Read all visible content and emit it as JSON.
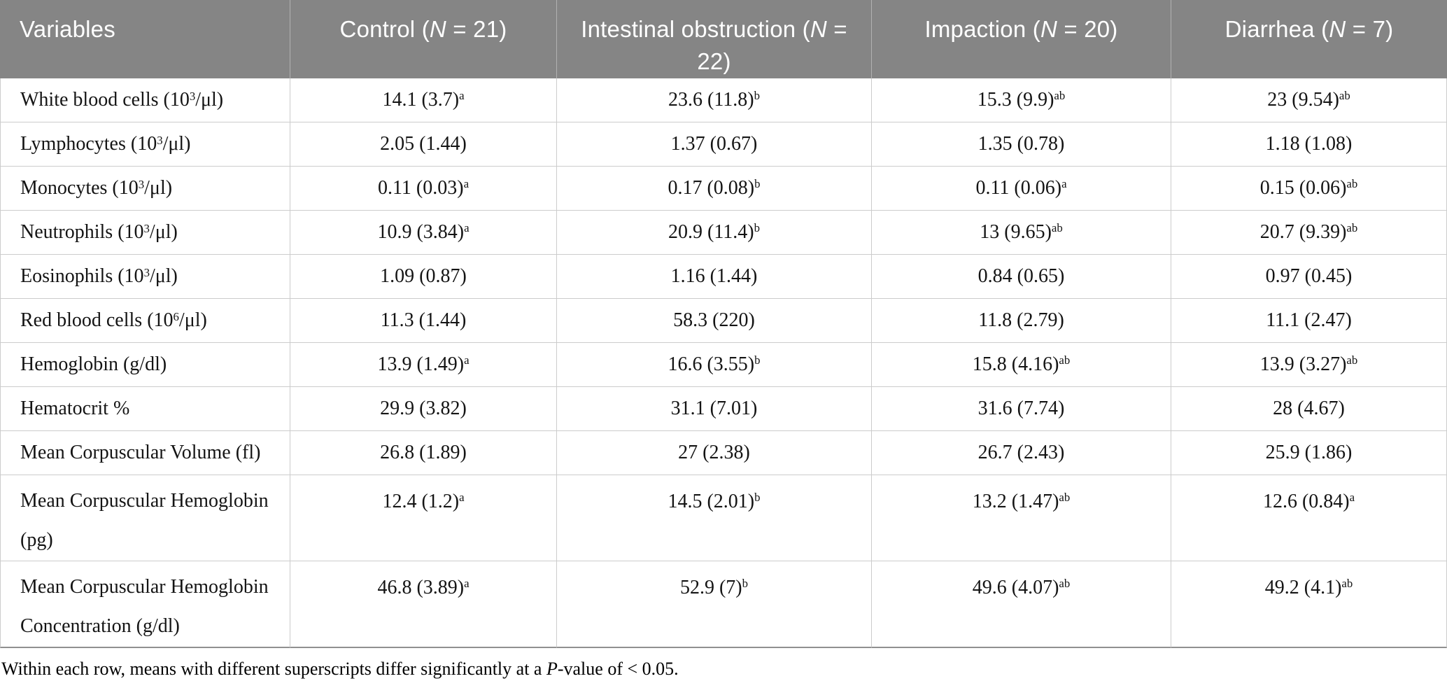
{
  "table": {
    "columns": [
      {
        "label": "Variables"
      },
      {
        "label": "Control (N = 21)"
      },
      {
        "label": "Intestinal obstruction (N = 22)"
      },
      {
        "label": "Impaction (N = 20)"
      },
      {
        "label": "Diarrhea (N = 7)"
      }
    ],
    "rows": [
      {
        "label": "White blood cells (10³/μl)",
        "cells": [
          {
            "v": "14.1 (3.7)",
            "s": "a"
          },
          {
            "v": "23.6 (11.8)",
            "s": "b"
          },
          {
            "v": "15.3 (9.9)",
            "s": "ab"
          },
          {
            "v": "23 (9.54)",
            "s": "ab"
          }
        ]
      },
      {
        "label": "Lymphocytes (10³/μl)",
        "cells": [
          {
            "v": "2.05 (1.44)",
            "s": ""
          },
          {
            "v": "1.37 (0.67)",
            "s": ""
          },
          {
            "v": "1.35 (0.78)",
            "s": ""
          },
          {
            "v": "1.18 (1.08)",
            "s": ""
          }
        ]
      },
      {
        "label": "Monocytes (10³/μl)",
        "cells": [
          {
            "v": "0.11 (0.03)",
            "s": "a"
          },
          {
            "v": "0.17 (0.08)",
            "s": "b"
          },
          {
            "v": "0.11 (0.06)",
            "s": "a"
          },
          {
            "v": "0.15 (0.06)",
            "s": "ab"
          }
        ]
      },
      {
        "label": "Neutrophils (10³/μl)",
        "cells": [
          {
            "v": "10.9 (3.84)",
            "s": "a"
          },
          {
            "v": "20.9 (11.4)",
            "s": "b"
          },
          {
            "v": "13 (9.65)",
            "s": "ab"
          },
          {
            "v": "20.7 (9.39)",
            "s": "ab"
          }
        ]
      },
      {
        "label": "Eosinophils (10³/μl)",
        "cells": [
          {
            "v": "1.09 (0.87)",
            "s": ""
          },
          {
            "v": "1.16 (1.44)",
            "s": ""
          },
          {
            "v": "0.84 (0.65)",
            "s": ""
          },
          {
            "v": "0.97 (0.45)",
            "s": ""
          }
        ]
      },
      {
        "label": "Red blood cells (10⁶/μl)",
        "cells": [
          {
            "v": "11.3 (1.44)",
            "s": ""
          },
          {
            "v": "58.3 (220)",
            "s": ""
          },
          {
            "v": "11.8 (2.79)",
            "s": ""
          },
          {
            "v": "11.1 (2.47)",
            "s": ""
          }
        ]
      },
      {
        "label": "Hemoglobin (g/dl)",
        "cells": [
          {
            "v": "13.9 (1.49)",
            "s": "a"
          },
          {
            "v": "16.6 (3.55)",
            "s": "b"
          },
          {
            "v": "15.8 (4.16)",
            "s": "ab"
          },
          {
            "v": "13.9 (3.27)",
            "s": "ab"
          }
        ]
      },
      {
        "label": "Hematocrit %",
        "cells": [
          {
            "v": "29.9 (3.82)",
            "s": ""
          },
          {
            "v": "31.1 (7.01)",
            "s": ""
          },
          {
            "v": "31.6 (7.74)",
            "s": ""
          },
          {
            "v": "28 (4.67)",
            "s": ""
          }
        ]
      },
      {
        "label": "Mean Corpuscular Volume (fl)",
        "cells": [
          {
            "v": "26.8 (1.89)",
            "s": ""
          },
          {
            "v": "27 (2.38)",
            "s": ""
          },
          {
            "v": "26.7 (2.43)",
            "s": ""
          },
          {
            "v": "25.9 (1.86)",
            "s": ""
          }
        ]
      },
      {
        "label": "Mean Corpuscular Hemoglobin (pg)",
        "tall": true,
        "cells": [
          {
            "v": "12.4 (1.2)",
            "s": "a"
          },
          {
            "v": "14.5 (2.01)",
            "s": "b"
          },
          {
            "v": "13.2 (1.47)",
            "s": "ab"
          },
          {
            "v": "12.6 (0.84)",
            "s": "a"
          }
        ]
      },
      {
        "label": "Mean Corpuscular Hemoglobin Concentration (g/dl)",
        "tall": true,
        "cells": [
          {
            "v": "46.8 (3.89)",
            "s": "a"
          },
          {
            "v": "52.9 (7)",
            "s": "b"
          },
          {
            "v": "49.6 (4.07)",
            "s": "ab"
          },
          {
            "v": "49.2 (4.1)",
            "s": "ab"
          }
        ]
      }
    ],
    "footnote": {
      "pre": "Within each row, means with different superscripts differ significantly at a ",
      "p": "P",
      "post": "-value of < 0.05."
    }
  },
  "colors": {
    "header_bg": "#858585",
    "header_text": "#ffffff",
    "header_divider": "#b2b2b2",
    "grid_line": "#cccccc",
    "outer_line": "#909090",
    "body_text": "#141414"
  }
}
